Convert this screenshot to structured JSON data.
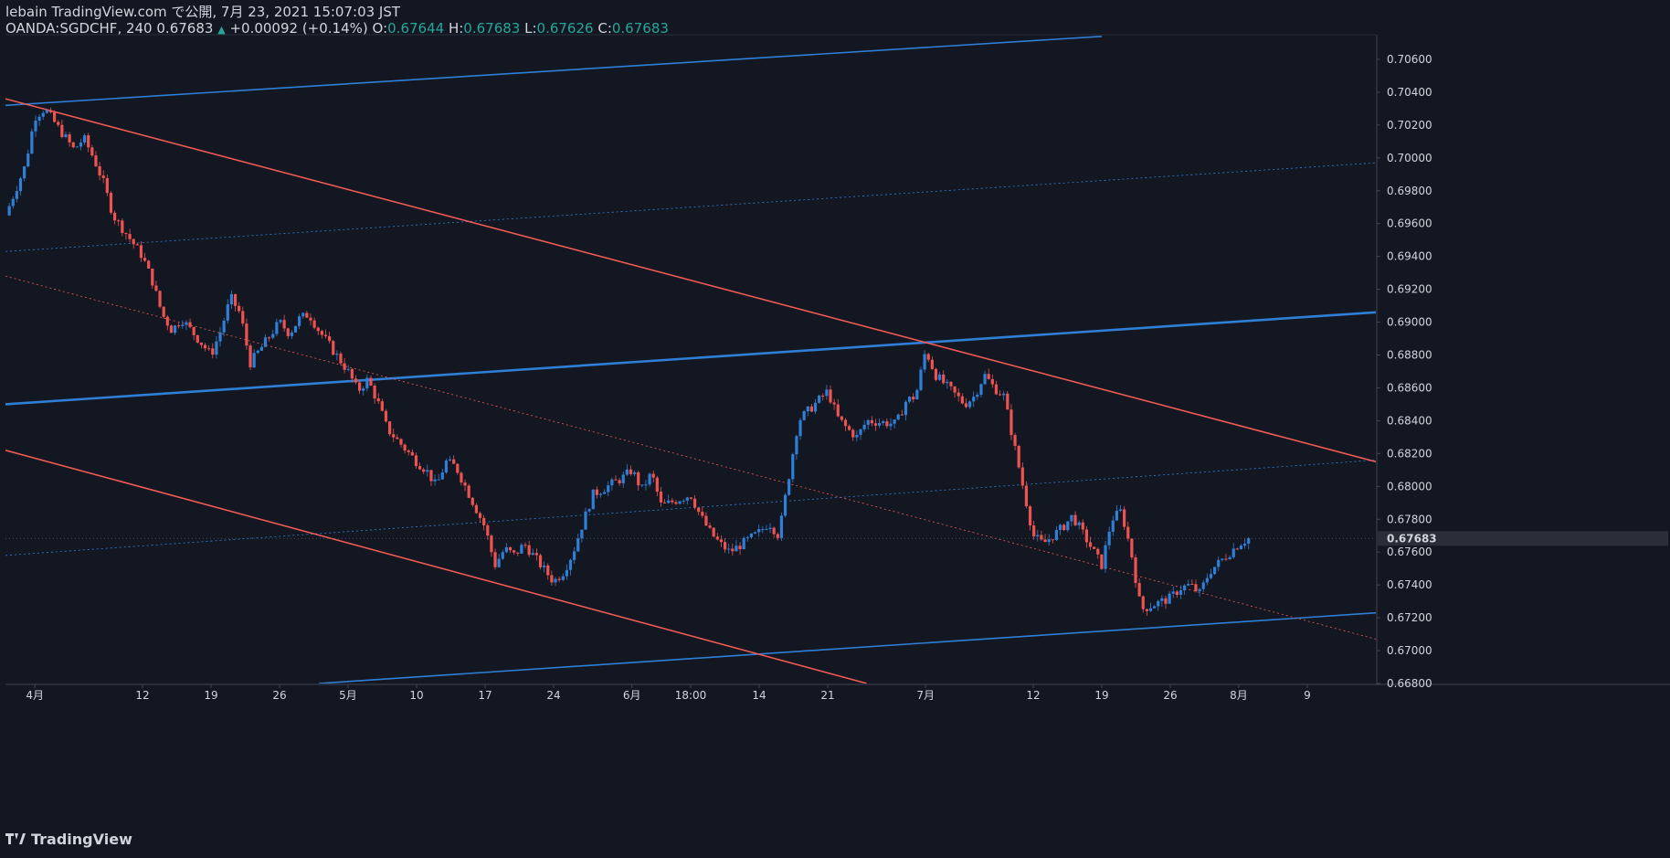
{
  "header": {
    "published": "lebain TradingView.com で公開, 7月 23, 2021 15:07:03 JST",
    "symbol": "OANDA:SGDCHF, 240",
    "last": "0.67683",
    "change_arrow": "▲",
    "change": "+0.00092 (+0.14%)",
    "o_label": "O:",
    "o": "0.67644",
    "h_label": "H:",
    "h": "0.67683",
    "l_label": "L:",
    "l": "0.67626",
    "c_label": "C:",
    "c": "0.67683"
  },
  "footer": {
    "logo_icon": "tradingview-logo-icon",
    "brand": "TradingView"
  },
  "colors": {
    "background": "#131722",
    "up": "#2f7fd6",
    "down": "#ef5350",
    "blue_line": "#2962ff",
    "channel_blue": "#2f7fd6",
    "channel_red": "#f05a55",
    "price_label_bg": "#2a2e39"
  },
  "chart_data": {
    "type": "candlestick",
    "ylim": [
      0.668,
      0.7075
    ],
    "y_ticks": [
      "0.70600",
      "0.70400",
      "0.70200",
      "0.70000",
      "0.69800",
      "0.69600",
      "0.69400",
      "0.69200",
      "0.69000",
      "0.68800",
      "0.68600",
      "0.68400",
      "0.68200",
      "0.68000",
      "0.67800",
      "0.67600",
      "0.67400",
      "0.67200",
      "0.67000",
      "0.66800"
    ],
    "x_ticks": [
      "4月",
      "12",
      "19",
      "26",
      "5月",
      "10",
      "17",
      "24",
      "6月",
      "18:00",
      "14",
      "21",
      "7月",
      "12",
      "19",
      "26",
      "8月",
      "9"
    ],
    "x_tick_dates": [
      "2021-04-01",
      "2021-04-12",
      "2021-04-19",
      "2021-04-26",
      "2021-05-03",
      "2021-05-10",
      "2021-05-17",
      "2021-05-24",
      "2021-06-01",
      "2021-06-07",
      "2021-06-14",
      "2021-06-21",
      "2021-07-01",
      "2021-07-12",
      "2021-07-19",
      "2021-07-26",
      "2021-08-02",
      "2021-08-09"
    ],
    "last_price": "0.67683",
    "close_path": [
      [
        "2021-03-29",
        0.6965
      ],
      [
        "2021-03-31",
        0.6995
      ],
      [
        "2021-04-01",
        0.7025
      ],
      [
        "2021-04-02",
        0.703
      ],
      [
        "2021-04-05",
        0.7005
      ],
      [
        "2021-04-06",
        0.7012
      ],
      [
        "2021-04-07",
        0.7
      ],
      [
        "2021-04-08",
        0.6985
      ],
      [
        "2021-04-09",
        0.6965
      ],
      [
        "2021-04-12",
        0.694
      ],
      [
        "2021-04-13",
        0.6925
      ],
      [
        "2021-04-14",
        0.6905
      ],
      [
        "2021-04-15",
        0.6895
      ],
      [
        "2021-04-16",
        0.6902
      ],
      [
        "2021-04-19",
        0.688
      ],
      [
        "2021-04-20",
        0.6895
      ],
      [
        "2021-04-21",
        0.6915
      ],
      [
        "2021-04-22",
        0.6905
      ],
      [
        "2021-04-23",
        0.6875
      ],
      [
        "2021-04-26",
        0.69
      ],
      [
        "2021-04-27",
        0.6893
      ],
      [
        "2021-04-28",
        0.6902
      ],
      [
        "2021-04-29",
        0.6905
      ],
      [
        "2021-04-30",
        0.6895
      ],
      [
        "2021-05-03",
        0.687
      ],
      [
        "2021-05-04",
        0.6858
      ],
      [
        "2021-05-05",
        0.6865
      ],
      [
        "2021-05-06",
        0.6852
      ],
      [
        "2021-05-07",
        0.6835
      ],
      [
        "2021-05-10",
        0.6815
      ],
      [
        "2021-05-11",
        0.681
      ],
      [
        "2021-05-12",
        0.68
      ],
      [
        "2021-05-13",
        0.6815
      ],
      [
        "2021-05-14",
        0.6812
      ],
      [
        "2021-05-17",
        0.6775
      ],
      [
        "2021-05-18",
        0.6752
      ],
      [
        "2021-05-19",
        0.6762
      ],
      [
        "2021-05-20",
        0.6758
      ],
      [
        "2021-05-21",
        0.6765
      ],
      [
        "2021-05-24",
        0.6742
      ],
      [
        "2021-05-25",
        0.6748
      ],
      [
        "2021-05-26",
        0.676
      ],
      [
        "2021-05-27",
        0.6778
      ],
      [
        "2021-05-28",
        0.6795
      ],
      [
        "2021-05-31",
        0.6805
      ],
      [
        "2021-06-01",
        0.681
      ],
      [
        "2021-06-02",
        0.6798
      ],
      [
        "2021-06-03",
        0.6808
      ],
      [
        "2021-06-04",
        0.6788
      ],
      [
        "2021-06-07",
        0.6795
      ],
      [
        "2021-06-08",
        0.6782
      ],
      [
        "2021-06-09",
        0.6772
      ],
      [
        "2021-06-10",
        0.6765
      ],
      [
        "2021-06-11",
        0.676
      ],
      [
        "2021-06-14",
        0.6772
      ],
      [
        "2021-06-15",
        0.6778
      ],
      [
        "2021-06-16",
        0.677
      ],
      [
        "2021-06-17",
        0.6805
      ],
      [
        "2021-06-18",
        0.684
      ],
      [
        "2021-06-21",
        0.6858
      ],
      [
        "2021-06-22",
        0.6842
      ],
      [
        "2021-06-23",
        0.6835
      ],
      [
        "2021-06-24",
        0.683
      ],
      [
        "2021-06-25",
        0.684
      ],
      [
        "2021-06-28",
        0.6838
      ],
      [
        "2021-06-29",
        0.6852
      ],
      [
        "2021-06-30",
        0.6855
      ],
      [
        "2021-07-01",
        0.6883
      ],
      [
        "2021-07-02",
        0.6868
      ],
      [
        "2021-07-05",
        0.685
      ],
      [
        "2021-07-06",
        0.6855
      ],
      [
        "2021-07-07",
        0.6868
      ],
      [
        "2021-07-08",
        0.686
      ],
      [
        "2021-07-09",
        0.6855
      ],
      [
        "2021-07-12",
        0.677
      ],
      [
        "2021-07-13",
        0.6765
      ],
      [
        "2021-07-14",
        0.677
      ],
      [
        "2021-07-15",
        0.6775
      ],
      [
        "2021-07-16",
        0.6782
      ],
      [
        "2021-07-19",
        0.6752
      ],
      [
        "2021-07-20",
        0.678
      ],
      [
        "2021-07-21",
        0.6785
      ],
      [
        "2021-07-22",
        0.676
      ],
      [
        "2021-07-23",
        0.6725
      ],
      [
        "2021-07-26",
        0.6732
      ],
      [
        "2021-07-27",
        0.6738
      ],
      [
        "2021-07-28",
        0.674
      ],
      [
        "2021-07-29",
        0.6735
      ],
      [
        "2021-07-30",
        0.6748
      ],
      [
        "2021-08-02",
        0.6765
      ],
      [
        "2021-08-03",
        0.67683
      ]
    ],
    "trend_lines": [
      {
        "color": "channel_blue",
        "width": 1.6,
        "from": [
          "2021-03-29",
          0.7032
        ],
        "to": [
          "2021-07-19",
          0.7074
        ]
      },
      {
        "color": "channel_blue",
        "width": 0.8,
        "dash": "2 3",
        "from": [
          "2021-03-29",
          0.6943
        ],
        "to": [
          "2021-08-16",
          0.6997
        ]
      },
      {
        "color": "channel_blue",
        "width": 2.6,
        "from": [
          "2021-03-29",
          0.685
        ],
        "to": [
          "2021-08-16",
          0.6906
        ]
      },
      {
        "color": "channel_blue",
        "width": 0.8,
        "dash": "2 3",
        "from": [
          "2021-03-29",
          0.6758
        ],
        "to": [
          "2021-08-16",
          0.6816
        ]
      },
      {
        "color": "channel_blue",
        "width": 1.6,
        "from": [
          "2021-04-30",
          0.668
        ],
        "to": [
          "2021-08-16",
          0.6723
        ]
      },
      {
        "color": "channel_red",
        "width": 1.6,
        "from": [
          "2021-03-29",
          0.7036
        ],
        "to": [
          "2021-08-16",
          0.6815
        ]
      },
      {
        "color": "channel_red",
        "width": 0.8,
        "dash": "2 3",
        "from": [
          "2021-03-29",
          0.6928
        ],
        "to": [
          "2021-08-16",
          0.6707
        ]
      },
      {
        "color": "channel_red",
        "width": 1.6,
        "from": [
          "2021-03-29",
          0.6822
        ],
        "to": [
          "2021-06-25",
          0.668
        ]
      }
    ],
    "grid": false
  }
}
